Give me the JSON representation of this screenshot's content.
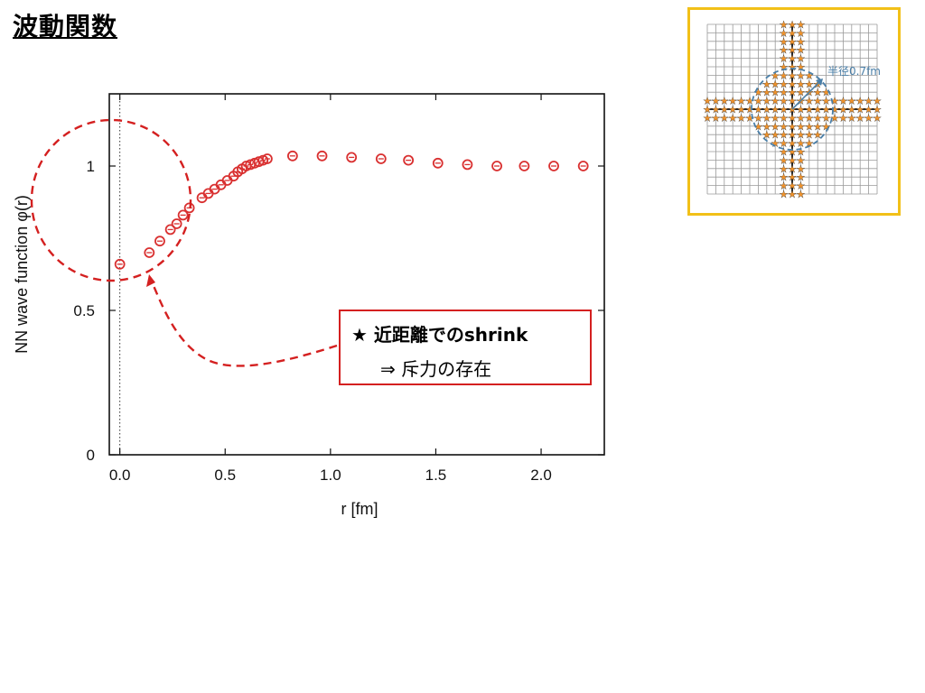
{
  "slide": {
    "title": "波動関数"
  },
  "annotation": {
    "line1": "★ 近距離でのshrink",
    "line2": "⇒ 斥力の存在",
    "color": "#d42020"
  },
  "inset": {
    "label": "半径0.7fm",
    "border_color": "#f2c018",
    "star_color": "#f0922a",
    "circle_color": "#4a7fa8"
  },
  "chart_data": {
    "type": "scatter",
    "title": "",
    "xlabel": "r [fm]",
    "ylabel": "NN wave function φ(r)",
    "xlim": [
      -0.05,
      2.3
    ],
    "ylim": [
      0,
      1.25
    ],
    "xticks": [
      "0.0",
      "0.5",
      "1.0",
      "1.5",
      "2.0"
    ],
    "yticks": [
      "0",
      "0.5",
      "1"
    ],
    "marker_color": "#d93030",
    "grid": false,
    "series": [
      {
        "x": [
          0.0,
          0.14,
          0.19,
          0.24,
          0.27,
          0.3,
          0.33,
          0.39,
          0.42,
          0.45,
          0.48,
          0.51,
          0.54,
          0.56,
          0.58,
          0.6,
          0.62,
          0.64,
          0.66,
          0.68,
          0.7,
          0.82,
          0.96,
          1.1,
          1.24,
          1.37,
          1.51,
          1.65,
          1.79,
          1.92,
          2.06,
          2.2
        ],
        "y": [
          0.66,
          0.7,
          0.74,
          0.78,
          0.8,
          0.83,
          0.855,
          0.89,
          0.905,
          0.92,
          0.935,
          0.95,
          0.965,
          0.98,
          0.99,
          1.0,
          1.005,
          1.01,
          1.015,
          1.02,
          1.025,
          1.035,
          1.035,
          1.03,
          1.025,
          1.02,
          1.01,
          1.005,
          1.0,
          1.0,
          1.0,
          1.0
        ]
      }
    ]
  }
}
